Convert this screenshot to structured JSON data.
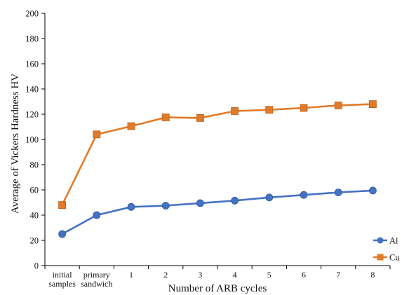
{
  "chart_data": {
    "type": "line",
    "xlabel": "Number of ARB cycles",
    "ylabel": "Average of Vickers Hardness HV",
    "ylim": [
      0,
      200
    ],
    "ytick_step": 20,
    "yticks": [
      "0",
      "20",
      "40",
      "60",
      "80",
      "100",
      "120",
      "140",
      "160",
      "180",
      "200"
    ],
    "categories": [
      [
        "initial",
        "samples"
      ],
      [
        "primary",
        "sandwich"
      ],
      [
        "1"
      ],
      [
        "2"
      ],
      [
        "3"
      ],
      [
        "4"
      ],
      [
        "5"
      ],
      [
        "6"
      ],
      [
        "7"
      ],
      [
        "8"
      ]
    ],
    "legend_position": "bottom-right",
    "grid": false,
    "series": [
      {
        "name": "Al",
        "marker": "circle",
        "color": "#4472C4",
        "values": [
          25,
          40,
          46.5,
          47.5,
          49.5,
          51.5,
          54,
          56,
          58,
          59.5
        ]
      },
      {
        "name": "Cu",
        "marker": "square",
        "color": "#E07B29",
        "values": [
          48,
          104,
          110.5,
          117.5,
          117,
          122.5,
          123.5,
          125,
          127,
          128
        ]
      }
    ]
  }
}
